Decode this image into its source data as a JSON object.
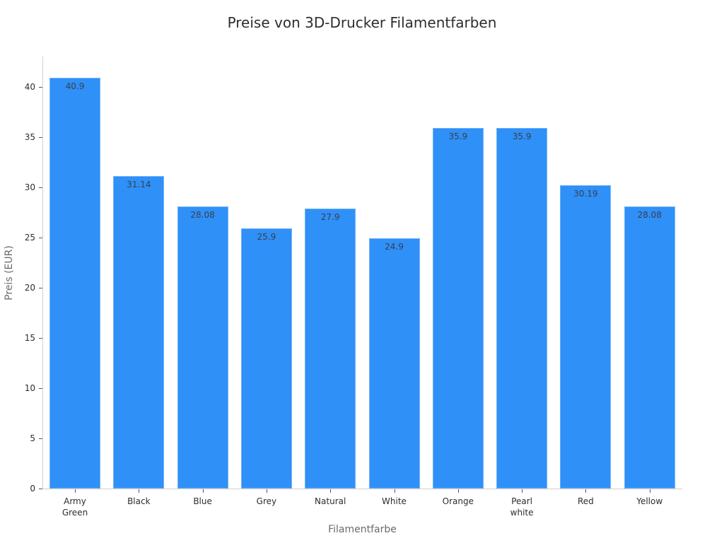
{
  "chart_data": {
    "type": "bar",
    "title": "Preise von 3D-Drucker Filamentfarben",
    "xlabel": "Filamentfarbe",
    "ylabel": "Preis (EUR)",
    "categories": [
      "Army\nGreen",
      "Black",
      "Blue",
      "Grey",
      "Natural",
      "White",
      "Orange",
      "Pearl\nwhite",
      "Red",
      "Yellow"
    ],
    "values": [
      40.9,
      31.14,
      28.08,
      25.9,
      27.9,
      24.9,
      35.9,
      35.9,
      30.19,
      28.08
    ],
    "value_labels": [
      "40.9",
      "31.14",
      "28.08",
      "25.9",
      "27.9",
      "24.9",
      "35.9",
      "35.9",
      "30.19",
      "28.08"
    ],
    "ylim": [
      0,
      43
    ],
    "yticks": [
      0,
      5,
      10,
      15,
      20,
      25,
      30,
      35,
      40
    ],
    "grid": false,
    "legend": null,
    "bar_color": "#2f90f8"
  }
}
